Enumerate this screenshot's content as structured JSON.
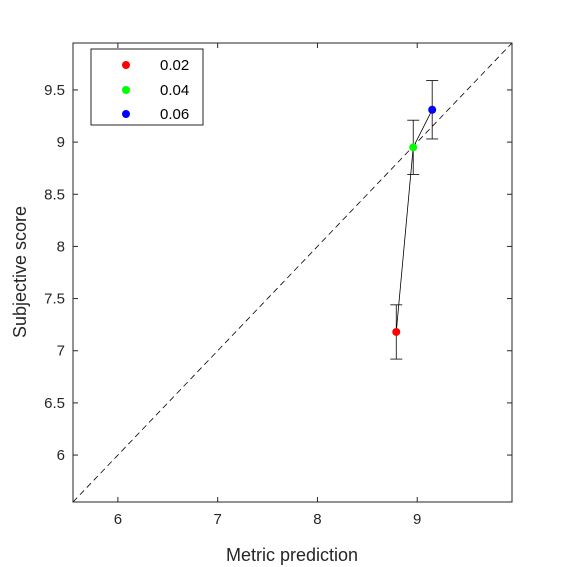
{
  "chart_data": {
    "type": "scatter",
    "xlabel": "Metric prediction",
    "ylabel": "Subjective score",
    "xlim": [
      5.55,
      9.95
    ],
    "ylim": [
      5.55,
      9.95
    ],
    "xticks": [
      6,
      7,
      8,
      9
    ],
    "xtick_labels": [
      "6",
      "7",
      "8",
      "9"
    ],
    "yticks": [
      6,
      6.5,
      7,
      7.5,
      8,
      8.5,
      9,
      9.5
    ],
    "ytick_labels": [
      "6",
      "6.5",
      "7",
      "7.5",
      "8",
      "8.5",
      "9",
      "9.5"
    ],
    "grid": false,
    "legend_position": "top-left",
    "identity_line": true,
    "connecting_line": true,
    "points": [
      {
        "label": "0.02",
        "x": 8.79,
        "y": 7.18,
        "err_low": 6.92,
        "err_high": 7.44,
        "color": "#ff0000"
      },
      {
        "label": "0.04",
        "x": 8.96,
        "y": 8.95,
        "err_low": 8.69,
        "err_high": 9.21,
        "color": "#00ff00"
      },
      {
        "label": "0.06",
        "x": 9.15,
        "y": 9.31,
        "err_low": 9.03,
        "err_high": 9.59,
        "color": "#0000ff"
      }
    ]
  }
}
